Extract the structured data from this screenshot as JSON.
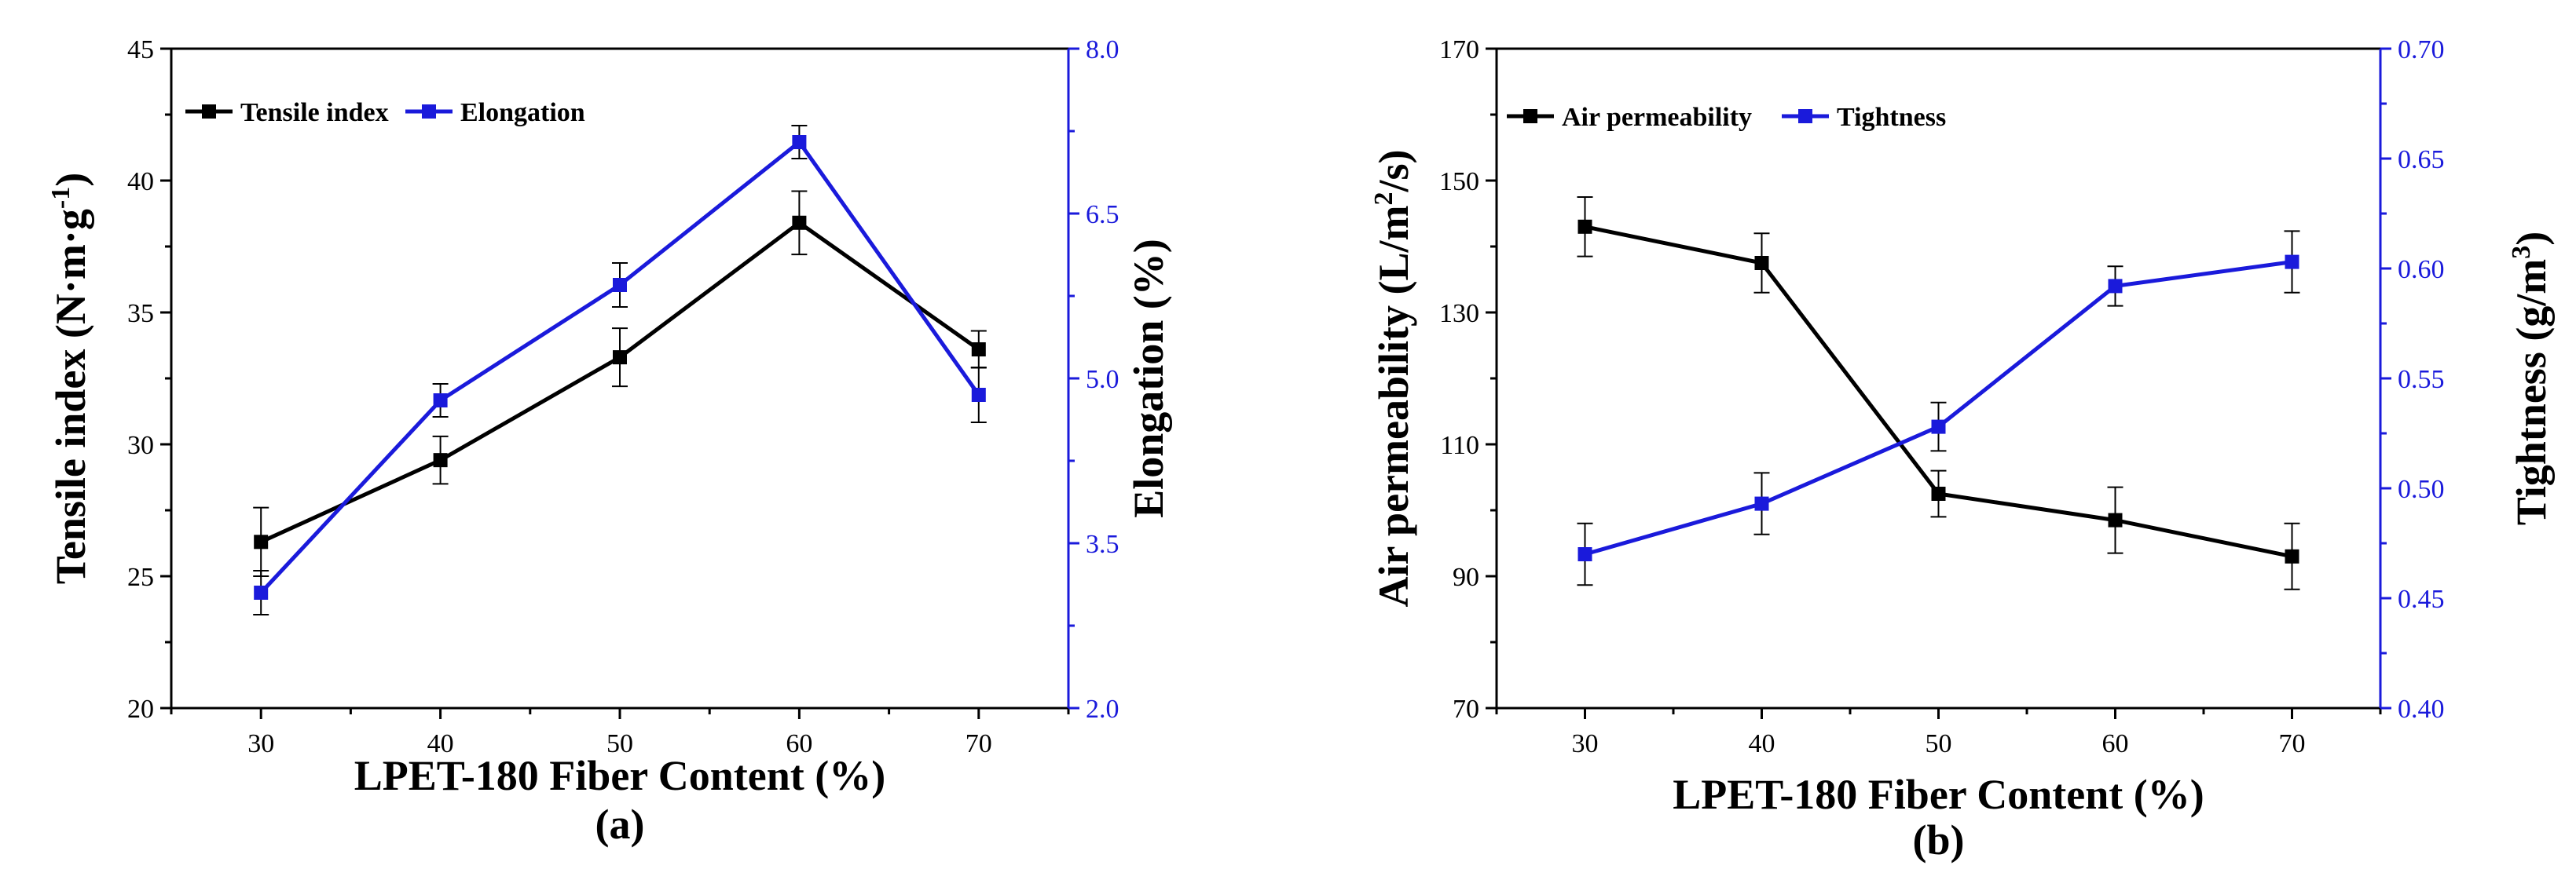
{
  "chart_data": [
    {
      "type": "line",
      "panel_label": "(a)",
      "x": [
        30,
        40,
        50,
        60,
        70
      ],
      "xlabel": "LPET-180 Fiber Content (%)",
      "x_ticks": [
        30,
        40,
        50,
        60,
        70
      ],
      "xlim": [
        25,
        75
      ],
      "left_axis": {
        "label_main": "Tensile index (N·m·g",
        "label_sup": "-1",
        "label_end": ")",
        "ylim": [
          20,
          45
        ],
        "ticks": [
          "20",
          "25",
          "30",
          "35",
          "40",
          "45"
        ],
        "color": "#000000"
      },
      "right_axis": {
        "label": "Elongation (%)",
        "ylim": [
          2.0,
          8.0
        ],
        "ticks": [
          "2.0",
          "3.5",
          "5.0",
          "6.5",
          "8.0"
        ],
        "color": "#1a1adb"
      },
      "series": [
        {
          "name": "Tensile index",
          "axis": "left",
          "color": "#000000",
          "values": [
            26.3,
            29.4,
            33.3,
            38.4,
            33.6
          ],
          "errors": [
            1.3,
            0.9,
            1.1,
            1.2,
            0.7
          ]
        },
        {
          "name": "Elongation",
          "axis": "right",
          "color": "#1a1adb",
          "values": [
            3.05,
            4.8,
            5.85,
            7.15,
            4.85
          ],
          "errors": [
            0.2,
            0.15,
            0.2,
            0.15,
            0.25
          ]
        }
      ]
    },
    {
      "type": "line",
      "panel_label": "(b)",
      "x": [
        30,
        40,
        50,
        60,
        70
      ],
      "xlabel": "LPET-180 Fiber Content (%)",
      "x_ticks": [
        30,
        40,
        50,
        60,
        70
      ],
      "xlim": [
        25,
        75
      ],
      "left_axis": {
        "label_main": "Air permeability (L/m",
        "label_sup": "2",
        "label_end": "/s)",
        "ylim": [
          70,
          170
        ],
        "ticks": [
          "70",
          "90",
          "110",
          "130",
          "150",
          "170"
        ],
        "color": "#000000"
      },
      "right_axis": {
        "label_main": "Tightness (g/m",
        "label_sup": "3",
        "label_end": ")",
        "ylim": [
          0.4,
          0.7
        ],
        "ticks": [
          "0.40",
          "0.45",
          "0.50",
          "0.55",
          "0.60",
          "0.65",
          "0.70"
        ],
        "color": "#1a1adb"
      },
      "series": [
        {
          "name": "Air permeability",
          "axis": "left",
          "color": "#000000",
          "values": [
            143,
            137.5,
            102.5,
            98.5,
            93
          ],
          "errors": [
            4.5,
            4.5,
            3.5,
            5,
            5
          ]
        },
        {
          "name": "Tightness",
          "axis": "right",
          "color": "#1a1adb",
          "values": [
            0.47,
            0.493,
            0.528,
            0.592,
            0.603
          ],
          "errors": [
            0.014,
            0.014,
            0.011,
            0.009,
            0.014
          ]
        }
      ]
    }
  ]
}
